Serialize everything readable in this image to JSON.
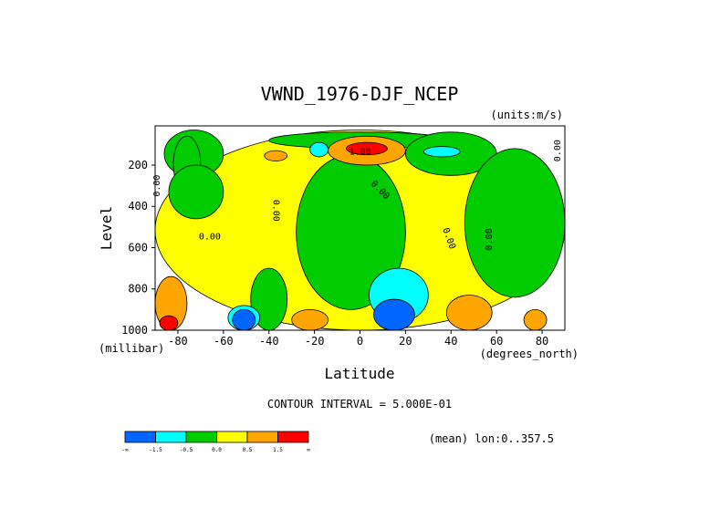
{
  "chart_data": {
    "type": "heatmap",
    "title": "VWND_1976-DJF_NCEP",
    "units_note": "(units:m/s)",
    "xlabel": "Latitude",
    "ylabel": "Level",
    "x_units": "(degrees_north)",
    "y_units": "(millibar)",
    "xlim": [
      -90,
      90
    ],
    "ylim": [
      1000,
      10
    ],
    "y_inverted": true,
    "x_ticks": [
      "-80",
      "-60",
      "-40",
      "-20",
      "0",
      "20",
      "40",
      "60",
      "80"
    ],
    "y_ticks": [
      "200",
      "400",
      "600",
      "800",
      "1000"
    ],
    "contour_interval": "CONTOUR INTERVAL = 5.000E-01",
    "mean_note": "(mean) lon:0..357.5",
    "contour_labels": [
      "1.00",
      "0.00",
      "0.00",
      "0.00",
      "0.00",
      "0.00",
      "0.00",
      "0.00"
    ],
    "legend": {
      "colors": [
        "#0066ff",
        "#00ffff",
        "#00cc00",
        "#ffff00",
        "#ffa500",
        "#ff0000"
      ],
      "tick_labels": [
        "-∞",
        "-1.5",
        "-0.5",
        "0.0",
        "0.5",
        "1.5",
        "∞"
      ]
    },
    "regions": [
      {
        "level": "yellow",
        "lat": [
          -90,
          90
        ],
        "p": [
          30,
          1000
        ]
      },
      {
        "level": "green",
        "lat": [
          -86,
          -60
        ],
        "p": [
          30,
          260
        ]
      },
      {
        "level": "green",
        "lat": [
          -82,
          -70
        ],
        "p": [
          60,
          330
        ]
      },
      {
        "level": "green",
        "lat": [
          -84,
          -60
        ],
        "p": [
          200,
          460
        ]
      },
      {
        "level": "green",
        "lat": [
          -40,
          40
        ],
        "p": [
          40,
          120
        ]
      },
      {
        "level": "green",
        "lat": [
          -28,
          20
        ],
        "p": [
          150,
          900
        ]
      },
      {
        "level": "green",
        "lat": [
          20,
          60
        ],
        "p": [
          40,
          250
        ]
      },
      {
        "level": "green",
        "lat": [
          46,
          90
        ],
        "p": [
          120,
          840
        ]
      },
      {
        "level": "green",
        "lat": [
          -48,
          -32
        ],
        "p": [
          700,
          1000
        ]
      },
      {
        "level": "cyan",
        "lat": [
          -22,
          -14
        ],
        "p": [
          90,
          160
        ]
      },
      {
        "level": "cyan",
        "lat": [
          28,
          44
        ],
        "p": [
          110,
          160
        ]
      },
      {
        "level": "cyan",
        "lat": [
          4,
          30
        ],
        "p": [
          700,
          960
        ]
      },
      {
        "level": "cyan",
        "lat": [
          -58,
          -44
        ],
        "p": [
          880,
          1000
        ]
      },
      {
        "level": "blue",
        "lat": [
          6,
          24
        ],
        "p": [
          850,
          1000
        ]
      },
      {
        "level": "blue",
        "lat": [
          -56,
          -46
        ],
        "p": [
          900,
          1000
        ]
      },
      {
        "level": "orange",
        "lat": [
          -14,
          20
        ],
        "p": [
          60,
          200
        ]
      },
      {
        "level": "red",
        "lat": [
          -6,
          12
        ],
        "p": [
          90,
          150
        ]
      },
      {
        "level": "orange",
        "lat": [
          -42,
          -32
        ],
        "p": [
          130,
          180
        ]
      },
      {
        "level": "orange",
        "lat": [
          -90,
          -76
        ],
        "p": [
          740,
          1000
        ]
      },
      {
        "level": "red",
        "lat": [
          -88,
          -80
        ],
        "p": [
          930,
          1000
        ]
      },
      {
        "level": "orange",
        "lat": [
          -30,
          -14
        ],
        "p": [
          900,
          1000
        ]
      },
      {
        "level": "orange",
        "lat": [
          38,
          58
        ],
        "p": [
          830,
          1000
        ]
      },
      {
        "level": "orange",
        "lat": [
          72,
          82
        ],
        "p": [
          900,
          1000
        ]
      }
    ]
  }
}
